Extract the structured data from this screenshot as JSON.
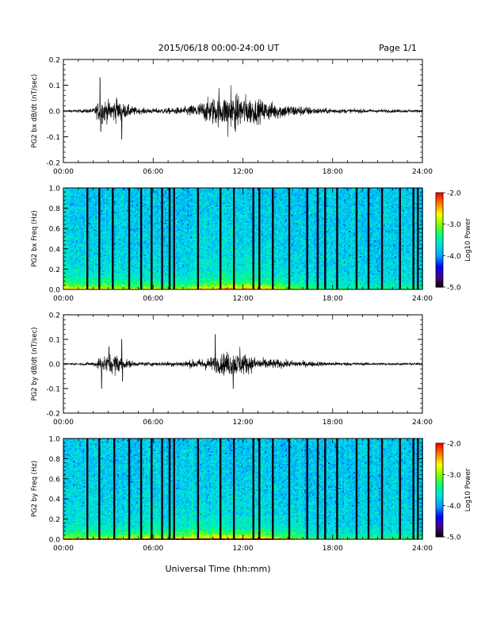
{
  "header": {
    "title": "2015/06/18  00:00-24:00 UT",
    "page": "Page 1/1"
  },
  "xaxis": {
    "label": "Universal Time (hh:mm)",
    "ticks": [
      "00:00",
      "06:00",
      "12:00",
      "18:00",
      "24:00"
    ],
    "range_hours": [
      0,
      24
    ]
  },
  "colorbar": {
    "label": "Log10 Power",
    "ticks": [
      "-2.0",
      "-3.0",
      "-4.0",
      "-5.0"
    ],
    "range": [
      -5.0,
      -2.0
    ],
    "colors": [
      "#000000",
      "#4b0082",
      "#0000ff",
      "#00a0ff",
      "#00e0e0",
      "#00ff80",
      "#80ff00",
      "#ffff00",
      "#ff8000",
      "#ff0000"
    ]
  },
  "chart_data": [
    {
      "type": "line",
      "ylabel": "PG2 bx dB/dt (nT/sec)",
      "ylim": [
        -0.2,
        0.2
      ],
      "yticks": [
        "0.2",
        "0.1",
        "0.0",
        "-0.1",
        "-0.2"
      ],
      "line_color": "#000000",
      "activity_envelope": {
        "x_hours": [
          0,
          1,
          2,
          2.5,
          3,
          3.5,
          4,
          5,
          6,
          7,
          8,
          9,
          10,
          11,
          12,
          13,
          14,
          15,
          16,
          17,
          18,
          19,
          20,
          21,
          22,
          23,
          24
        ],
        "amplitude": [
          0.004,
          0.006,
          0.01,
          0.05,
          0.04,
          0.045,
          0.03,
          0.012,
          0.01,
          0.012,
          0.015,
          0.03,
          0.055,
          0.06,
          0.065,
          0.045,
          0.035,
          0.025,
          0.02,
          0.012,
          0.01,
          0.008,
          0.008,
          0.007,
          0.006,
          0.006,
          0.005
        ]
      },
      "spikes": [
        {
          "x": 2.45,
          "y": 0.13
        },
        {
          "x": 2.5,
          "y": -0.08
        },
        {
          "x": 3.9,
          "y": -0.11
        },
        {
          "x": 3.55,
          "y": 0.05
        },
        {
          "x": 11.2,
          "y": 0.1
        },
        {
          "x": 11.0,
          "y": -0.1
        },
        {
          "x": 10.4,
          "y": 0.09
        },
        {
          "x": 11.5,
          "y": -0.08
        }
      ]
    },
    {
      "type": "heatmap",
      "ylabel": "PG2 bx Freq (Hz)",
      "ylim": [
        0.0,
        1.0
      ],
      "yticks": [
        "1.0",
        "0.8",
        "0.6",
        "0.4",
        "0.2",
        "0.0"
      ],
      "zlim": [
        -5.0,
        -2.0
      ],
      "dark_line_hours": [
        1.6,
        2.4,
        3.3,
        4.4,
        5.2,
        5.9,
        6.6,
        7.1,
        7.4,
        9.0,
        10.5,
        11.4,
        12.7,
        13.1,
        14.0,
        15.1,
        16.3,
        17.0,
        17.5,
        18.3,
        19.6,
        20.4,
        21.3,
        22.5,
        23.4,
        23.7
      ],
      "low_freq_band": {
        "x_hours": [
          3,
          7,
          10,
          12,
          14,
          17
        ],
        "strength": [
          0.8,
          0.6,
          0.9,
          1.0,
          0.8,
          0.3
        ]
      }
    },
    {
      "type": "line",
      "ylabel": "PG2 by dB/dt (nT/sec)",
      "ylim": [
        -0.2,
        0.2
      ],
      "yticks": [
        "0.2",
        "0.1",
        "0.0",
        "-0.1",
        "-0.2"
      ],
      "line_color": "#000000",
      "activity_envelope": {
        "x_hours": [
          0,
          1,
          2,
          2.5,
          3,
          3.5,
          4,
          5,
          6,
          7,
          8,
          9,
          10,
          11,
          12,
          13,
          14,
          15,
          16,
          17,
          18,
          19,
          20,
          21,
          22,
          23,
          24
        ],
        "amplitude": [
          0.003,
          0.004,
          0.008,
          0.035,
          0.035,
          0.045,
          0.02,
          0.008,
          0.008,
          0.01,
          0.012,
          0.02,
          0.03,
          0.05,
          0.045,
          0.025,
          0.02,
          0.015,
          0.012,
          0.01,
          0.008,
          0.007,
          0.006,
          0.006,
          0.005,
          0.005,
          0.005
        ]
      },
      "spikes": [
        {
          "x": 2.55,
          "y": -0.1
        },
        {
          "x": 3.05,
          "y": 0.07
        },
        {
          "x": 3.9,
          "y": 0.1
        },
        {
          "x": 3.95,
          "y": -0.07
        },
        {
          "x": 10.15,
          "y": 0.12
        },
        {
          "x": 11.35,
          "y": -0.1
        },
        {
          "x": 11.8,
          "y": 0.07
        }
      ]
    },
    {
      "type": "heatmap",
      "ylabel": "PG2 by Freq (Hz)",
      "ylim": [
        0.0,
        1.0
      ],
      "yticks": [
        "1.0",
        "0.8",
        "0.6",
        "0.4",
        "0.2",
        "0.0"
      ],
      "zlim": [
        -5.0,
        -2.0
      ],
      "dark_line_hours": [
        1.6,
        2.4,
        3.4,
        4.4,
        5.2,
        5.9,
        6.6,
        7.1,
        7.4,
        9.0,
        10.5,
        11.4,
        12.7,
        13.1,
        14.0,
        15.1,
        16.3,
        17.0,
        17.5,
        18.3,
        19.6,
        20.4,
        21.3,
        22.5,
        23.4,
        23.7
      ],
      "low_freq_band": {
        "x_hours": [
          3,
          7,
          10,
          12,
          14,
          17
        ],
        "strength": [
          0.7,
          0.8,
          1.0,
          1.0,
          0.8,
          0.3
        ]
      }
    }
  ]
}
